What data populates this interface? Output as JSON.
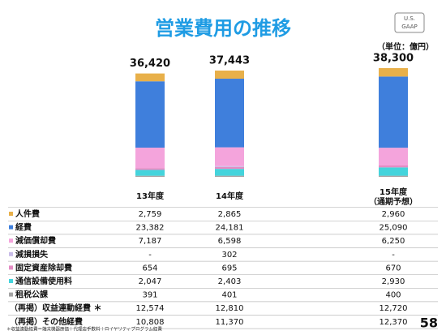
{
  "chart_data": {
    "type": "bar",
    "stacked": true,
    "title": "営業費用の推移",
    "badge": [
      "U.S.",
      "GAAP"
    ],
    "unit": "（単位：億円）",
    "categories": [
      "13年度",
      "14年度",
      "15年度"
    ],
    "forecast_note": "（通期予想）",
    "totals": [
      36420,
      37443,
      38300
    ],
    "total_labels": [
      "36,420",
      "37,443",
      "38,300"
    ],
    "series": [
      {
        "name": "人件費",
        "color": "#e8b04a",
        "values": [
          2759,
          2865,
          2960
        ],
        "value_labels": [
          "2,759",
          "2,865",
          "2,960"
        ]
      },
      {
        "name": "経費",
        "color": "#3f7fdc",
        "values": [
          23382,
          24181,
          25090
        ],
        "value_labels": [
          "23,382",
          "24,181",
          "25,090"
        ]
      },
      {
        "name": "減価償却費",
        "color": "#f4a4dc",
        "values": [
          7187,
          6598,
          6250
        ],
        "value_labels": [
          "7,187",
          "6,598",
          "6,250"
        ]
      },
      {
        "name": "減損損失",
        "color": "#c8bce8",
        "values": [
          null,
          302,
          null
        ],
        "value_labels": [
          "-",
          "302",
          "-"
        ]
      },
      {
        "name": "固定資産除却費",
        "color": "#e48cc4",
        "values": [
          654,
          695,
          670
        ],
        "value_labels": [
          "654",
          "695",
          "670"
        ]
      },
      {
        "name": "通信設備使用料",
        "color": "#44d4dc",
        "values": [
          2047,
          2403,
          2930
        ],
        "value_labels": [
          "2,047",
          "2,403",
          "2,930"
        ]
      },
      {
        "name": "租税公課",
        "color": "#a4a4a4",
        "values": [
          391,
          401,
          400
        ],
        "value_labels": [
          "391",
          "401",
          "400"
        ]
      }
    ],
    "memo_rows": [
      {
        "name": "（再掲）収益連動経費 ＊",
        "values": [
          "12,574",
          "12,810",
          "12,720"
        ]
      },
      {
        "name": "（再掲）その他経費",
        "values": [
          "10,808",
          "11,370",
          "12,370"
        ]
      }
    ],
    "footnote": "＊収益連動経費＝端末機器原価＋代理店手数料＋ロイヤリティプログラム経費",
    "page_number": "58"
  }
}
